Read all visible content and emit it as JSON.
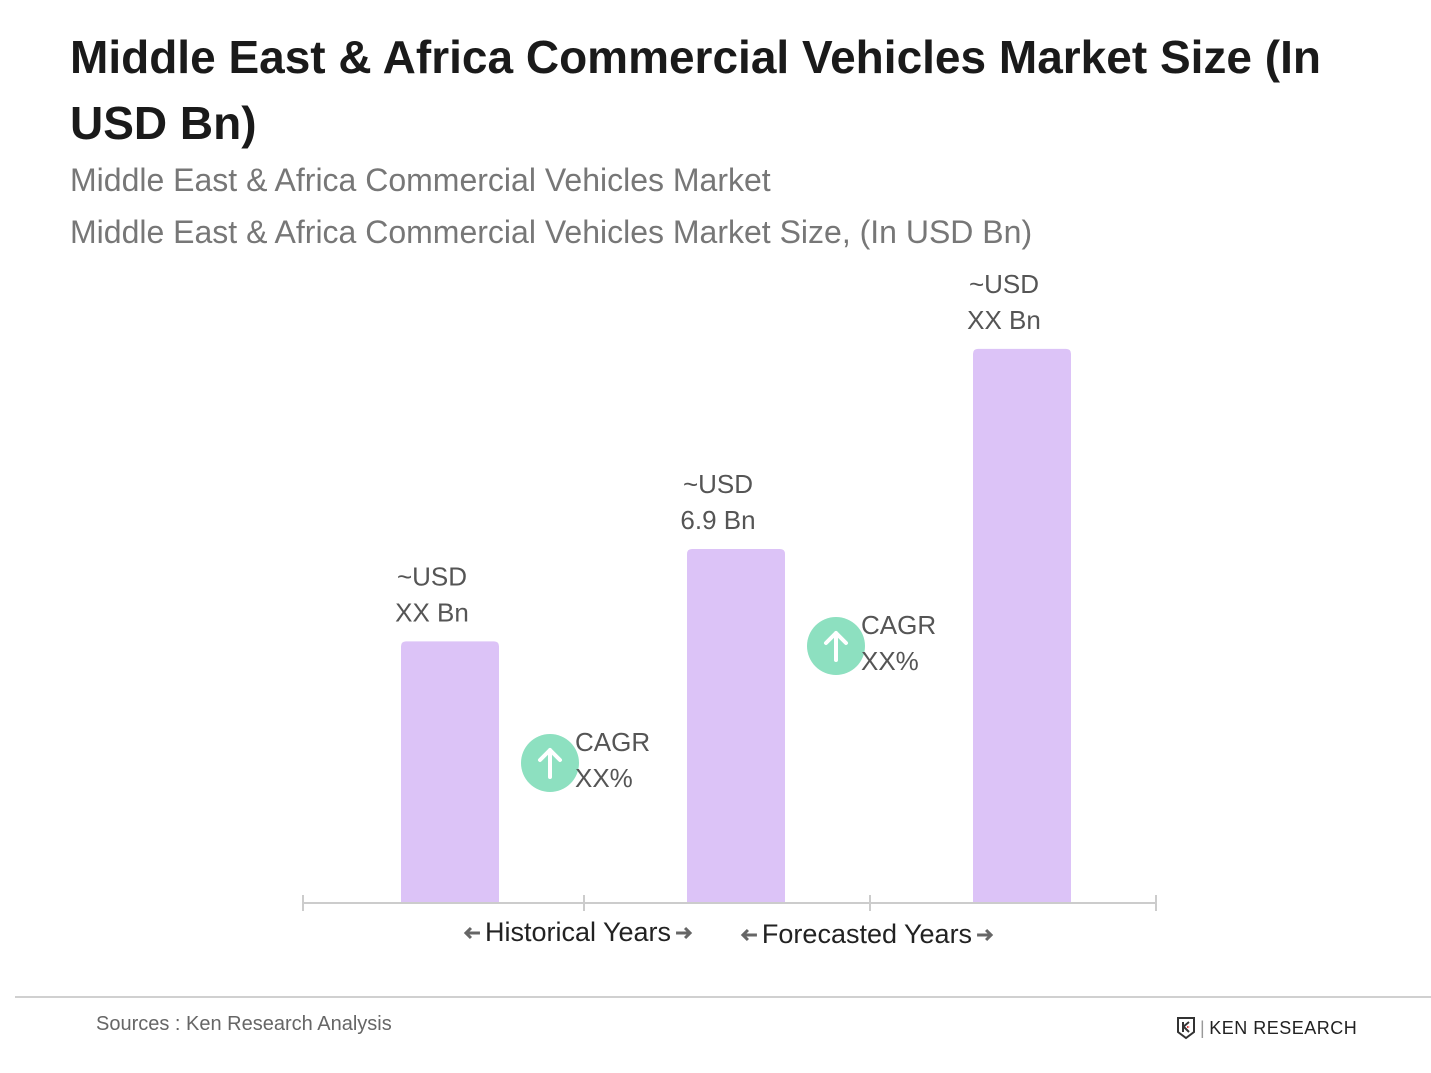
{
  "title": "Middle East & Africa Commercial Vehicles Market Size (In USD Bn)",
  "subtitle1": "Middle East & Africa Commercial Vehicles Market",
  "subtitle2": "Middle East & Africa Commercial Vehicles Market Size, (In USD Bn)",
  "chart_data": {
    "type": "bar",
    "categories": [
      "",
      "",
      ""
    ],
    "values": [
      5.1,
      6.9,
      10.8
    ],
    "data_labels": [
      [
        "~USD",
        "XX Bn"
      ],
      [
        "~USD",
        "6.9 Bn"
      ],
      [
        "~USD",
        "XX Bn"
      ]
    ],
    "bar_color": "#dcc3f7",
    "cagr_labels": [
      [
        "CAGR",
        "XX%"
      ],
      [
        "CAGR",
        "XX%"
      ]
    ],
    "cagr_icon": "arrow-up-circle-icon",
    "cagr_color": "#8de0c0",
    "period_labels": [
      "Historical Years",
      "Forecasted Years"
    ],
    "grid": false
  },
  "footer": {
    "source": "Sources : Ken Research Analysis",
    "logo": "KEN RESEARCH"
  }
}
